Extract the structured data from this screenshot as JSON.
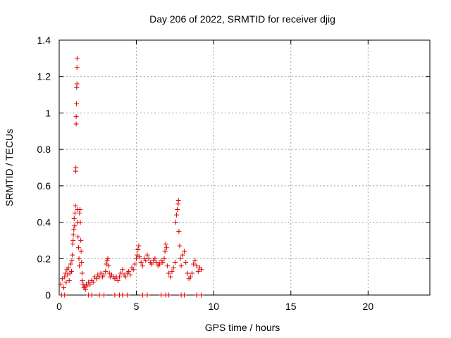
{
  "chart_data": {
    "type": "scatter",
    "title": "Day 206 of 2022, SRMTID for receiver djig",
    "xlabel": "GPS time / hours",
    "ylabel": "SRMTID / TECUs",
    "xlim": [
      0,
      24
    ],
    "ylim": [
      0,
      1.4
    ],
    "grid": true,
    "marker": "+",
    "x_ticks": [
      0,
      5,
      10,
      15,
      20
    ],
    "x_tick_labels": [
      "0",
      "5",
      "10",
      "15",
      "20"
    ],
    "y_ticks": [
      0,
      0.2,
      0.4,
      0.6,
      0.8,
      1.0,
      1.2,
      1.4
    ],
    "y_tick_labels": [
      "0",
      "0.2",
      "0.4",
      "0.6",
      "0.8",
      "1",
      "1.2",
      "1.4"
    ],
    "colors": {
      "series": "#dd0000",
      "grid": "#a0a0a0",
      "axis": "#000000"
    },
    "series": [
      {
        "name": "SRMTID",
        "points": [
          [
            0.1,
            0.06
          ],
          [
            0.2,
            0.09
          ],
          [
            0.3,
            0.04
          ],
          [
            0.35,
            0.1
          ],
          [
            0.4,
            0.12
          ],
          [
            0.45,
            0.07
          ],
          [
            0.5,
            0.14
          ],
          [
            0.55,
            0.11
          ],
          [
            0.6,
            0.15
          ],
          [
            0.65,
            0.08
          ],
          [
            0.7,
            0.12
          ],
          [
            0.75,
            0.17
          ],
          [
            0.8,
            0.13
          ],
          [
            0.82,
            0.19
          ],
          [
            0.85,
            0.22
          ],
          [
            0.88,
            0.28
          ],
          [
            0.9,
            0.3
          ],
          [
            0.92,
            0.33
          ],
          [
            0.95,
            0.36
          ],
          [
            0.97,
            0.42
          ],
          [
            1.0,
            0.38
          ],
          [
            1.02,
            0.45
          ],
          [
            1.05,
            0.49
          ],
          [
            1.07,
            0.68
          ],
          [
            1.08,
            0.7
          ],
          [
            1.1,
            0.94
          ],
          [
            1.1,
            0.98
          ],
          [
            1.12,
            1.05
          ],
          [
            1.13,
            1.14
          ],
          [
            1.15,
            1.16
          ],
          [
            1.15,
            1.25
          ],
          [
            1.16,
            1.3
          ],
          [
            1.18,
            0.47
          ],
          [
            1.2,
            0.4
          ],
          [
            1.22,
            0.32
          ],
          [
            1.25,
            0.26
          ],
          [
            1.28,
            0.2
          ],
          [
            1.3,
            0.16
          ],
          [
            1.32,
            0.45
          ],
          [
            1.35,
            0.47
          ],
          [
            1.37,
            0.4
          ],
          [
            1.4,
            0.3
          ],
          [
            1.42,
            0.24
          ],
          [
            1.45,
            0.18
          ],
          [
            1.48,
            0.12
          ],
          [
            1.5,
            0.08
          ],
          [
            1.55,
            0.06
          ],
          [
            1.6,
            0.04
          ],
          [
            1.65,
            0.05
          ],
          [
            1.7,
            0.03
          ],
          [
            1.75,
            0.06
          ],
          [
            1.8,
            0.05
          ],
          [
            1.9,
            0.07
          ],
          [
            2.0,
            0.06
          ],
          [
            2.1,
            0.08
          ],
          [
            2.2,
            0.07
          ],
          [
            2.3,
            0.1
          ],
          [
            2.4,
            0.09
          ],
          [
            2.5,
            0.11
          ],
          [
            2.6,
            0.1
          ],
          [
            2.7,
            0.12
          ],
          [
            2.8,
            0.1
          ],
          [
            2.9,
            0.11
          ],
          [
            3.0,
            0.13
          ],
          [
            3.05,
            0.17
          ],
          [
            3.1,
            0.19
          ],
          [
            3.15,
            0.2
          ],
          [
            3.2,
            0.16
          ],
          [
            3.25,
            0.12
          ],
          [
            3.3,
            0.1
          ],
          [
            3.4,
            0.11
          ],
          [
            3.5,
            0.1
          ],
          [
            3.6,
            0.09
          ],
          [
            3.7,
            0.1
          ],
          [
            3.8,
            0.08
          ],
          [
            3.9,
            0.1
          ],
          [
            4.0,
            0.12
          ],
          [
            4.1,
            0.14
          ],
          [
            4.2,
            0.11
          ],
          [
            4.3,
            0.1
          ],
          [
            4.4,
            0.12
          ],
          [
            4.5,
            0.13
          ],
          [
            4.6,
            0.11
          ],
          [
            4.7,
            0.15
          ],
          [
            4.8,
            0.14
          ],
          [
            4.9,
            0.17
          ],
          [
            5.0,
            0.2
          ],
          [
            5.05,
            0.22
          ],
          [
            5.1,
            0.25
          ],
          [
            5.15,
            0.27
          ],
          [
            5.2,
            0.21
          ],
          [
            5.3,
            0.18
          ],
          [
            5.4,
            0.16
          ],
          [
            5.5,
            0.2
          ],
          [
            5.6,
            0.19
          ],
          [
            5.7,
            0.22
          ],
          [
            5.8,
            0.2
          ],
          [
            5.9,
            0.18
          ],
          [
            6.0,
            0.17
          ],
          [
            6.1,
            0.19
          ],
          [
            6.2,
            0.2
          ],
          [
            6.3,
            0.18
          ],
          [
            6.4,
            0.16
          ],
          [
            6.5,
            0.17
          ],
          [
            6.6,
            0.19
          ],
          [
            6.7,
            0.18
          ],
          [
            6.8,
            0.2
          ],
          [
            6.85,
            0.24
          ],
          [
            6.9,
            0.28
          ],
          [
            6.95,
            0.26
          ],
          [
            7.0,
            0.16
          ],
          [
            7.1,
            0.12
          ],
          [
            7.2,
            0.1
          ],
          [
            7.3,
            0.13
          ],
          [
            7.4,
            0.15
          ],
          [
            7.5,
            0.18
          ],
          [
            7.55,
            0.4
          ],
          [
            7.6,
            0.44
          ],
          [
            7.65,
            0.47
          ],
          [
            7.7,
            0.5
          ],
          [
            7.72,
            0.52
          ],
          [
            7.75,
            0.35
          ],
          [
            7.8,
            0.27
          ],
          [
            7.85,
            0.2
          ],
          [
            7.9,
            0.16
          ],
          [
            8.0,
            0.22
          ],
          [
            8.1,
            0.24
          ],
          [
            8.2,
            0.18
          ],
          [
            8.3,
            0.12
          ],
          [
            8.4,
            0.09
          ],
          [
            8.5,
            0.1
          ],
          [
            8.6,
            0.12
          ],
          [
            8.7,
            0.17
          ],
          [
            8.8,
            0.19
          ],
          [
            8.9,
            0.16
          ],
          [
            9.0,
            0.13
          ],
          [
            9.1,
            0.15
          ],
          [
            9.2,
            0.14
          ],
          [
            0.15,
            0.0
          ],
          [
            0.35,
            0.0
          ],
          [
            1.9,
            0.0
          ],
          [
            2.1,
            0.0
          ],
          [
            2.6,
            0.0
          ],
          [
            2.9,
            0.0
          ],
          [
            3.6,
            0.0
          ],
          [
            3.9,
            0.0
          ],
          [
            4.1,
            0.0
          ],
          [
            4.4,
            0.0
          ],
          [
            5.4,
            0.0
          ],
          [
            5.7,
            0.0
          ],
          [
            6.6,
            0.0
          ],
          [
            6.9,
            0.0
          ],
          [
            7.1,
            0.0
          ],
          [
            7.9,
            0.0
          ],
          [
            8.1,
            0.0
          ],
          [
            8.9,
            0.0
          ],
          [
            9.2,
            0.0
          ]
        ]
      }
    ]
  }
}
